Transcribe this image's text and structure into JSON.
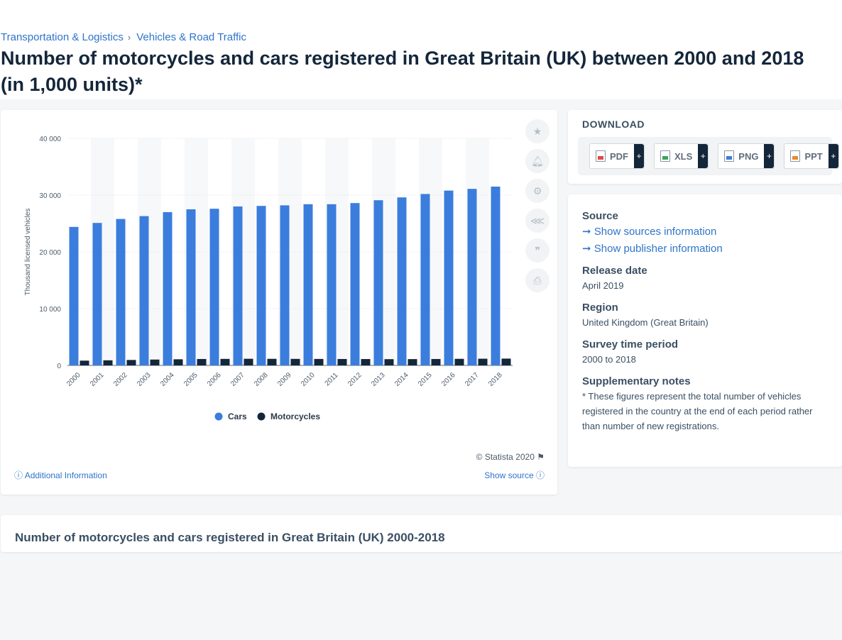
{
  "breadcrumb": {
    "items": [
      "Transportation & Logistics",
      "Vehicles & Road Traffic"
    ],
    "separator": "›"
  },
  "title": "Number of motorcycles and cars registered in Great Britain (UK) between 2000 and 2018 (in 1,000 units)*",
  "chart_data": {
    "type": "bar",
    "categories": [
      "2000",
      "2001",
      "2002",
      "2003",
      "2004",
      "2005",
      "2006",
      "2007",
      "2008",
      "2009",
      "2010",
      "2011",
      "2012",
      "2013",
      "2014",
      "2015",
      "2016",
      "2017",
      "2018"
    ],
    "series": [
      {
        "name": "Cars",
        "color": "#3b7ddd",
        "values": [
          24400,
          25100,
          25800,
          26300,
          27000,
          27500,
          27600,
          28000,
          28100,
          28200,
          28400,
          28400,
          28600,
          29100,
          29600,
          30200,
          30800,
          31100,
          31500
        ]
      },
      {
        "name": "Motorcycles",
        "color": "#14263a",
        "values": [
          840,
          900,
          960,
          1030,
          1080,
          1130,
          1150,
          1170,
          1160,
          1150,
          1140,
          1130,
          1120,
          1100,
          1110,
          1130,
          1160,
          1180,
          1200
        ]
      }
    ],
    "ylabel": "Thousand licensed vehicles",
    "ylim": [
      0,
      40000
    ],
    "yticks": [
      0,
      10000,
      20000,
      30000,
      40000
    ],
    "ytick_labels": [
      "0",
      "10 000",
      "20 000",
      "30 000",
      "40 000"
    ],
    "grid": true,
    "legend": "bottom-center"
  },
  "copyright": "© Statista 2020",
  "additional_info": "Additional Information",
  "show_source": "Show source",
  "tools": [
    "star-icon",
    "bell-icon",
    "gear-icon",
    "share-icon",
    "quote-icon",
    "print-icon"
  ],
  "download": {
    "title": "DOWNLOAD",
    "buttons": [
      {
        "label": "PDF",
        "plus": "+",
        "color": "#e04848"
      },
      {
        "label": "XLS",
        "plus": "+",
        "color": "#3aa55b"
      },
      {
        "label": "PNG",
        "plus": "+",
        "color": "#3b7ddd"
      },
      {
        "label": "PPT",
        "plus": "+",
        "color": "#e88a2a"
      }
    ]
  },
  "meta": {
    "source_heading": "Source",
    "show_sources": "Show sources information",
    "show_publisher": "Show publisher information",
    "release_heading": "Release date",
    "release_value": "April 2019",
    "region_heading": "Region",
    "region_value": "United Kingdom (Great Britain)",
    "survey_heading": "Survey time period",
    "survey_value": "2000 to 2018",
    "notes_heading": "Supplementary notes",
    "notes_value": "* These figures represent the total number of vehicles registered in the country at the end of each period rather than number of new registrations."
  },
  "bottom_title": "Number of motorcycles and cars registered in Great Britain (UK) 2000-2018"
}
